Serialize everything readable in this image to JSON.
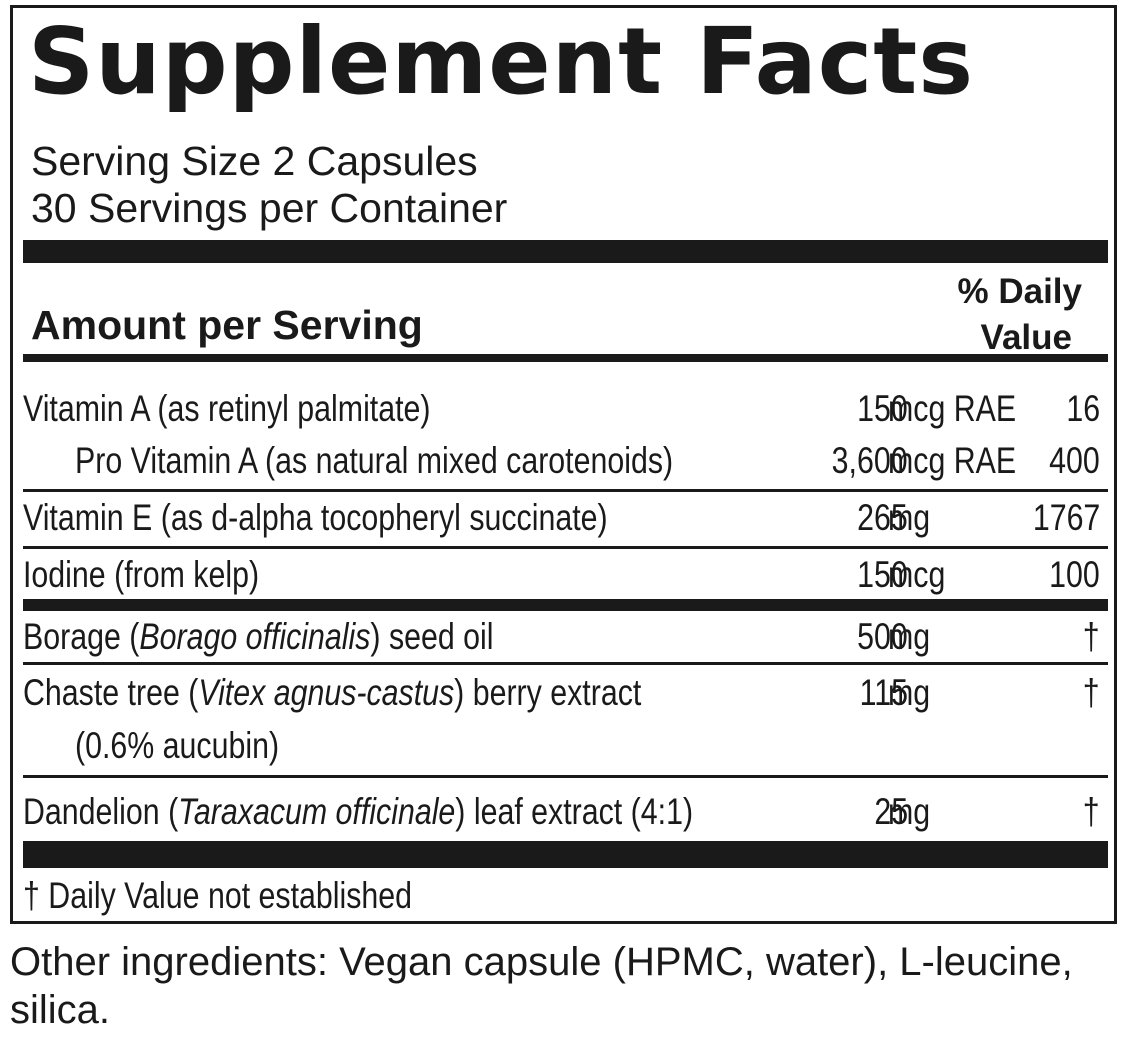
{
  "label": {
    "title": "Supplement Facts",
    "serving_size": "Serving Size 2 Capsules",
    "servings_per_container": "30 Servings per Container",
    "amount_per_serving": "Amount per Serving",
    "daily_value_line1": "% Daily",
    "daily_value_line2": "Value"
  },
  "nutrients": [
    {
      "name": "Vitamin A (as retinyl palmitate)",
      "qty": "150",
      "unit": "mcg RAE",
      "dv": "16"
    },
    {
      "name": "Pro Vitamin A (as natural mixed carotenoids)",
      "qty": "3,600",
      "unit": "mcg RAE",
      "dv": "400"
    },
    {
      "name": "Vitamin E (as d-alpha tocopheryl succinate)",
      "qty": "265",
      "unit": "mg",
      "dv": "1767"
    },
    {
      "name": "Iodine (from kelp)",
      "qty": "150",
      "unit": "mcg",
      "dv": "100"
    }
  ],
  "botanicals": [
    {
      "name_pre": "Borage (",
      "name_latin": "Borago officinalis",
      "name_post": ") seed oil",
      "qty": "500",
      "unit": "mg",
      "dv": "†"
    },
    {
      "name_pre": "Chaste tree (",
      "name_latin": "Vitex agnus-castus",
      "name_post": ") berry extract",
      "sub": "(0.6% aucubin)",
      "qty": "115",
      "unit": "mg",
      "dv": "†"
    },
    {
      "name_pre": "Dandelion (",
      "name_latin": "Taraxacum officinale",
      "name_post": ") leaf extract (4:1)",
      "qty": "25",
      "unit": "mg",
      "dv": "†"
    }
  ],
  "footnote": "†  Daily Value not established",
  "other_ingredients": "Other ingredients: Vegan capsule (HPMC, water), L-leucine, silica.",
  "colors": {
    "ink": "#1a1a1a",
    "background": "#ffffff"
  }
}
